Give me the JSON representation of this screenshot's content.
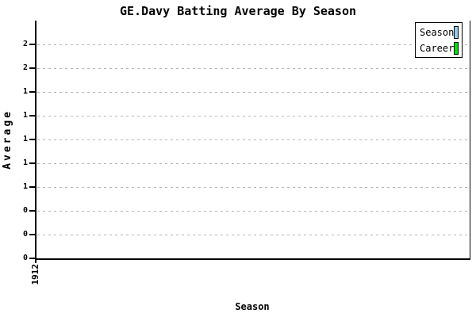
{
  "title": "GE.Davy Batting Average By Season",
  "axes": {
    "y_label": "Average",
    "x_label": "Season",
    "x_tick_label": "1912",
    "y_ticks_bottom_to_top": [
      "0",
      "0",
      "0",
      "1",
      "1",
      "1",
      "1",
      "1",
      "2",
      "2"
    ]
  },
  "legend": {
    "items": [
      {
        "label": "Season",
        "color": "#99CCEE"
      },
      {
        "label": "Career",
        "color": "#00DD11"
      }
    ]
  },
  "colors": {
    "background": "#FFFFFF",
    "axis": "#000000",
    "grid": "#B3B3B3",
    "text": "#000000",
    "season_series": "#99CCEE",
    "career_series": "#00DD11"
  },
  "chart_data": {
    "type": "bar",
    "title": "GE.Davy Batting Average By Season",
    "xlabel": "Season",
    "ylabel": "Average",
    "categories": [
      "1912"
    ],
    "series": [
      {
        "name": "Season",
        "color": "#99CCEE",
        "values": [
          null
        ]
      },
      {
        "name": "Career",
        "color": "#00DD11",
        "values": [
          null
        ]
      }
    ],
    "ylim": [
      0,
      1.9
    ],
    "y_tick_values": [
      0,
      0.2,
      0.4,
      0.6,
      0.8,
      1.0,
      1.2,
      1.4,
      1.6,
      1.8
    ],
    "y_tick_labels_displayed": [
      "0",
      "0",
      "0",
      "1",
      "1",
      "1",
      "1",
      "1",
      "2",
      "2"
    ],
    "grid": "horizontal-dashed",
    "legend_position": "top-right",
    "plot_is_empty": true
  }
}
